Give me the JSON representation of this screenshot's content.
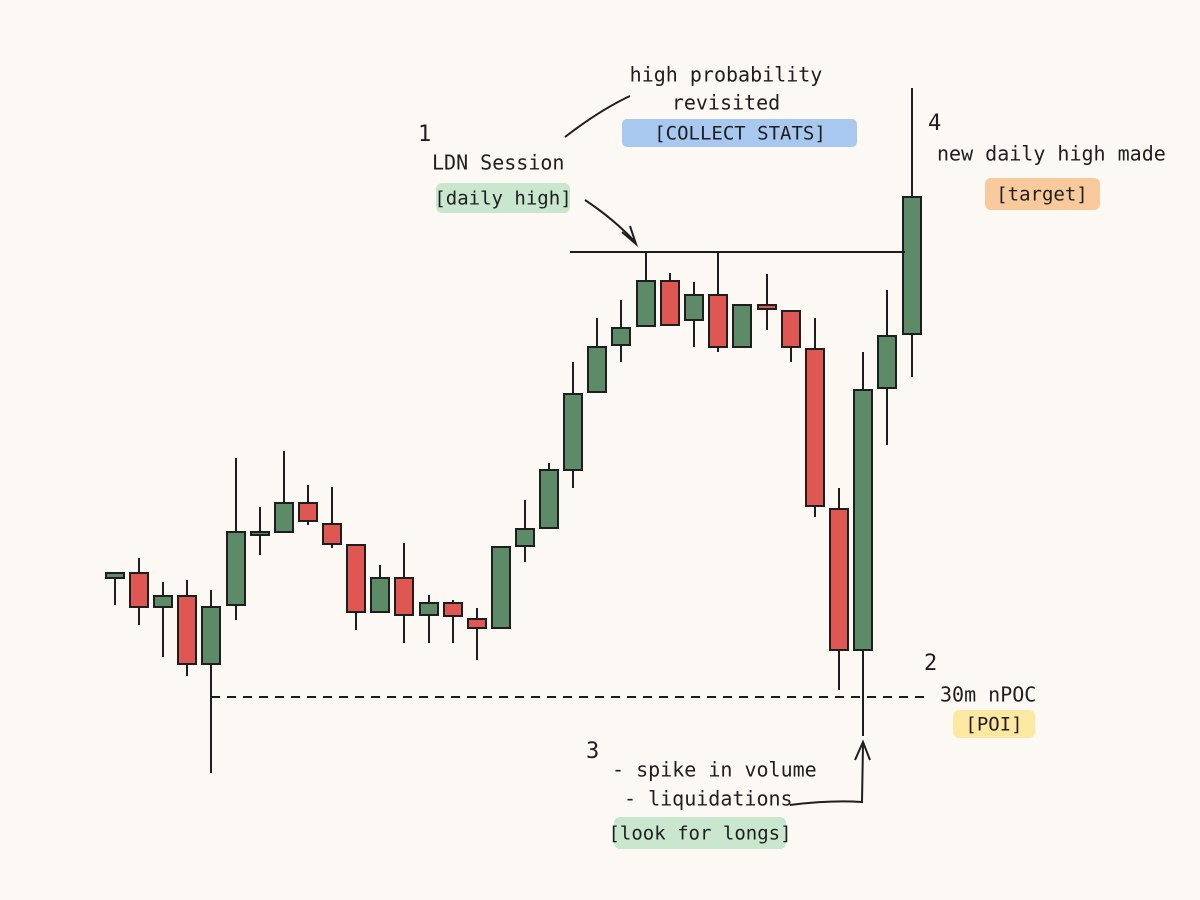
{
  "notes": {
    "stats": {
      "lines": [
        "high probability",
        "revisited"
      ],
      "tag": "[COLLECT STATS]"
    },
    "session": {
      "number": "1",
      "lines": [
        "LDN Session"
      ],
      "tag": "[daily high]"
    },
    "target": {
      "number": "4",
      "lines": [
        "new daily high made"
      ],
      "tag": "[target]"
    },
    "poi": {
      "number": "2",
      "lines": [
        "30m nPOC"
      ],
      "tag": "[POI]"
    },
    "longs": {
      "number": "3",
      "lines": [
        "- spike in volume",
        "- liquidations"
      ],
      "tag": "[look for longs]"
    }
  }
}
